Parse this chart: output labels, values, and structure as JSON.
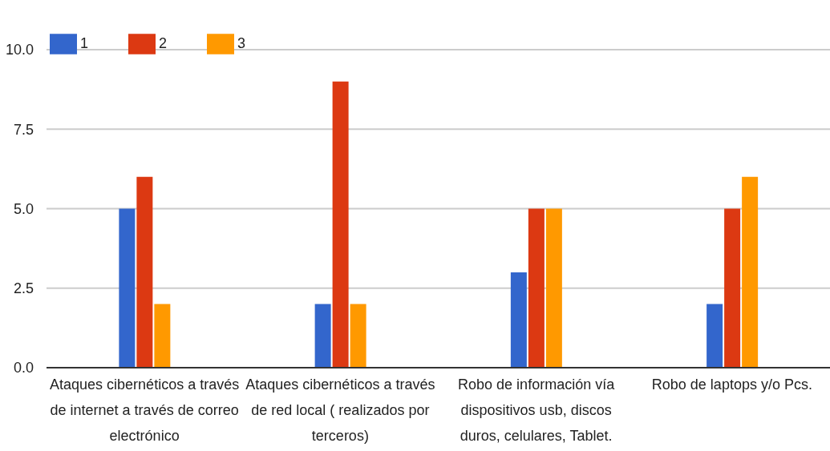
{
  "chart_data": {
    "type": "bar",
    "categories": [
      "Ataques cibernéticos a través de internet a través de correo electrónico",
      "Ataques cibernéticos a través de red local ( realizados por terceros)",
      "Robo de información vía dispositivos usb, discos duros, celulares, Tablet.",
      "Robo de laptops y/o Pcs."
    ],
    "series": [
      {
        "name": "1",
        "color": "#3366cc",
        "values": [
          5,
          2,
          3,
          2
        ]
      },
      {
        "name": "2",
        "color": "#dc3912",
        "values": [
          6,
          9,
          5,
          5
        ]
      },
      {
        "name": "3",
        "color": "#ff9900",
        "values": [
          2,
          2,
          5,
          6
        ]
      }
    ],
    "ylim": [
      0,
      10
    ],
    "yticks": [
      {
        "value": 0,
        "label": "0.0"
      },
      {
        "value": 2.5,
        "label": "2.5"
      },
      {
        "value": 5,
        "label": "5.0"
      },
      {
        "value": 7.5,
        "label": "7.5"
      },
      {
        "value": 10,
        "label": "10.0"
      }
    ],
    "grid": "y",
    "legend": "top left"
  }
}
